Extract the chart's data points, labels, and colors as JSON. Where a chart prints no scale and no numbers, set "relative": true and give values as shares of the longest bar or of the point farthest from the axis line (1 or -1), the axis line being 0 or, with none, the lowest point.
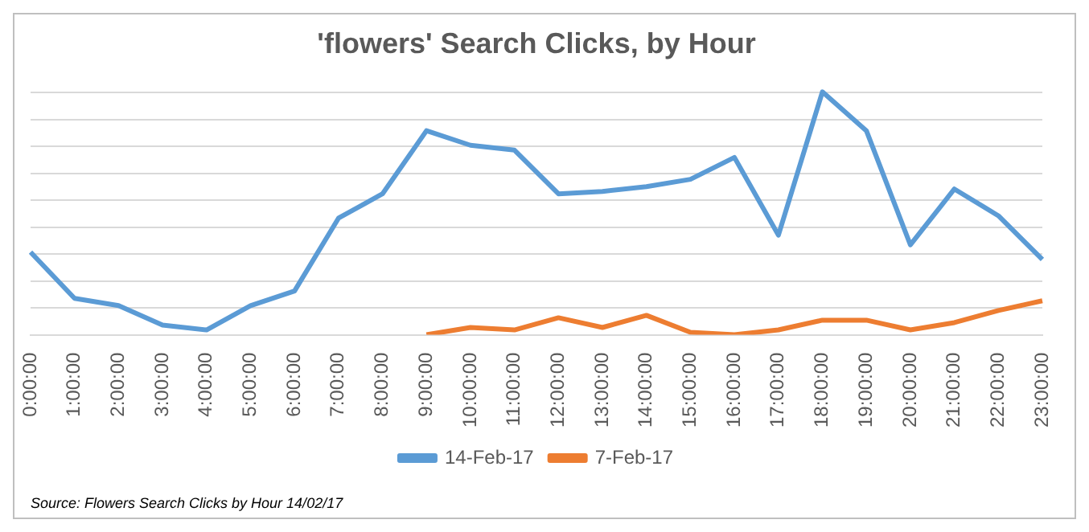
{
  "chart_data": {
    "type": "line",
    "title": "'flowers' Search Clicks, by Hour",
    "relative": true,
    "grid": "y",
    "legend": "bottom",
    "marker": "none",
    "categories": [
      "0:00:00",
      "1:00:00",
      "2:00:00",
      "3:00:00",
      "4:00:00",
      "5:00:00",
      "6:00:00",
      "7:00:00",
      "8:00:00",
      "9:00:00",
      "10:00:00",
      "11:00:00",
      "12:00:00",
      "13:00:00",
      "14:00:00",
      "15:00:00",
      "16:00:00",
      "17:00:00",
      "18:00:00",
      "19:00:00",
      "20:00:00",
      "21:00:00",
      "22:00:00",
      "23:00:00"
    ],
    "series": [
      {
        "name": "14-Feb-17",
        "color": "#5b9bd5",
        "values": [
          0.34,
          0.15,
          0.12,
          0.04,
          0.02,
          0.12,
          0.18,
          0.48,
          0.58,
          0.84,
          0.78,
          0.76,
          0.58,
          0.59,
          0.61,
          0.64,
          0.73,
          0.41,
          1,
          0.84,
          0.37,
          0.6,
          0.49,
          0.31
        ]
      },
      {
        "name": "7-Feb-17",
        "color": "#ed7d31",
        "values": [
          null,
          null,
          null,
          null,
          null,
          null,
          null,
          null,
          null,
          0,
          0.03,
          0.02,
          0.07,
          0.03,
          0.08,
          0.01,
          0,
          0.02,
          0.06,
          0.06,
          0.02,
          0.05,
          0.1,
          0.14
        ]
      }
    ],
    "annotations": [
      "Source: Flowers Search Clicks by Hour 14/02/17"
    ]
  }
}
